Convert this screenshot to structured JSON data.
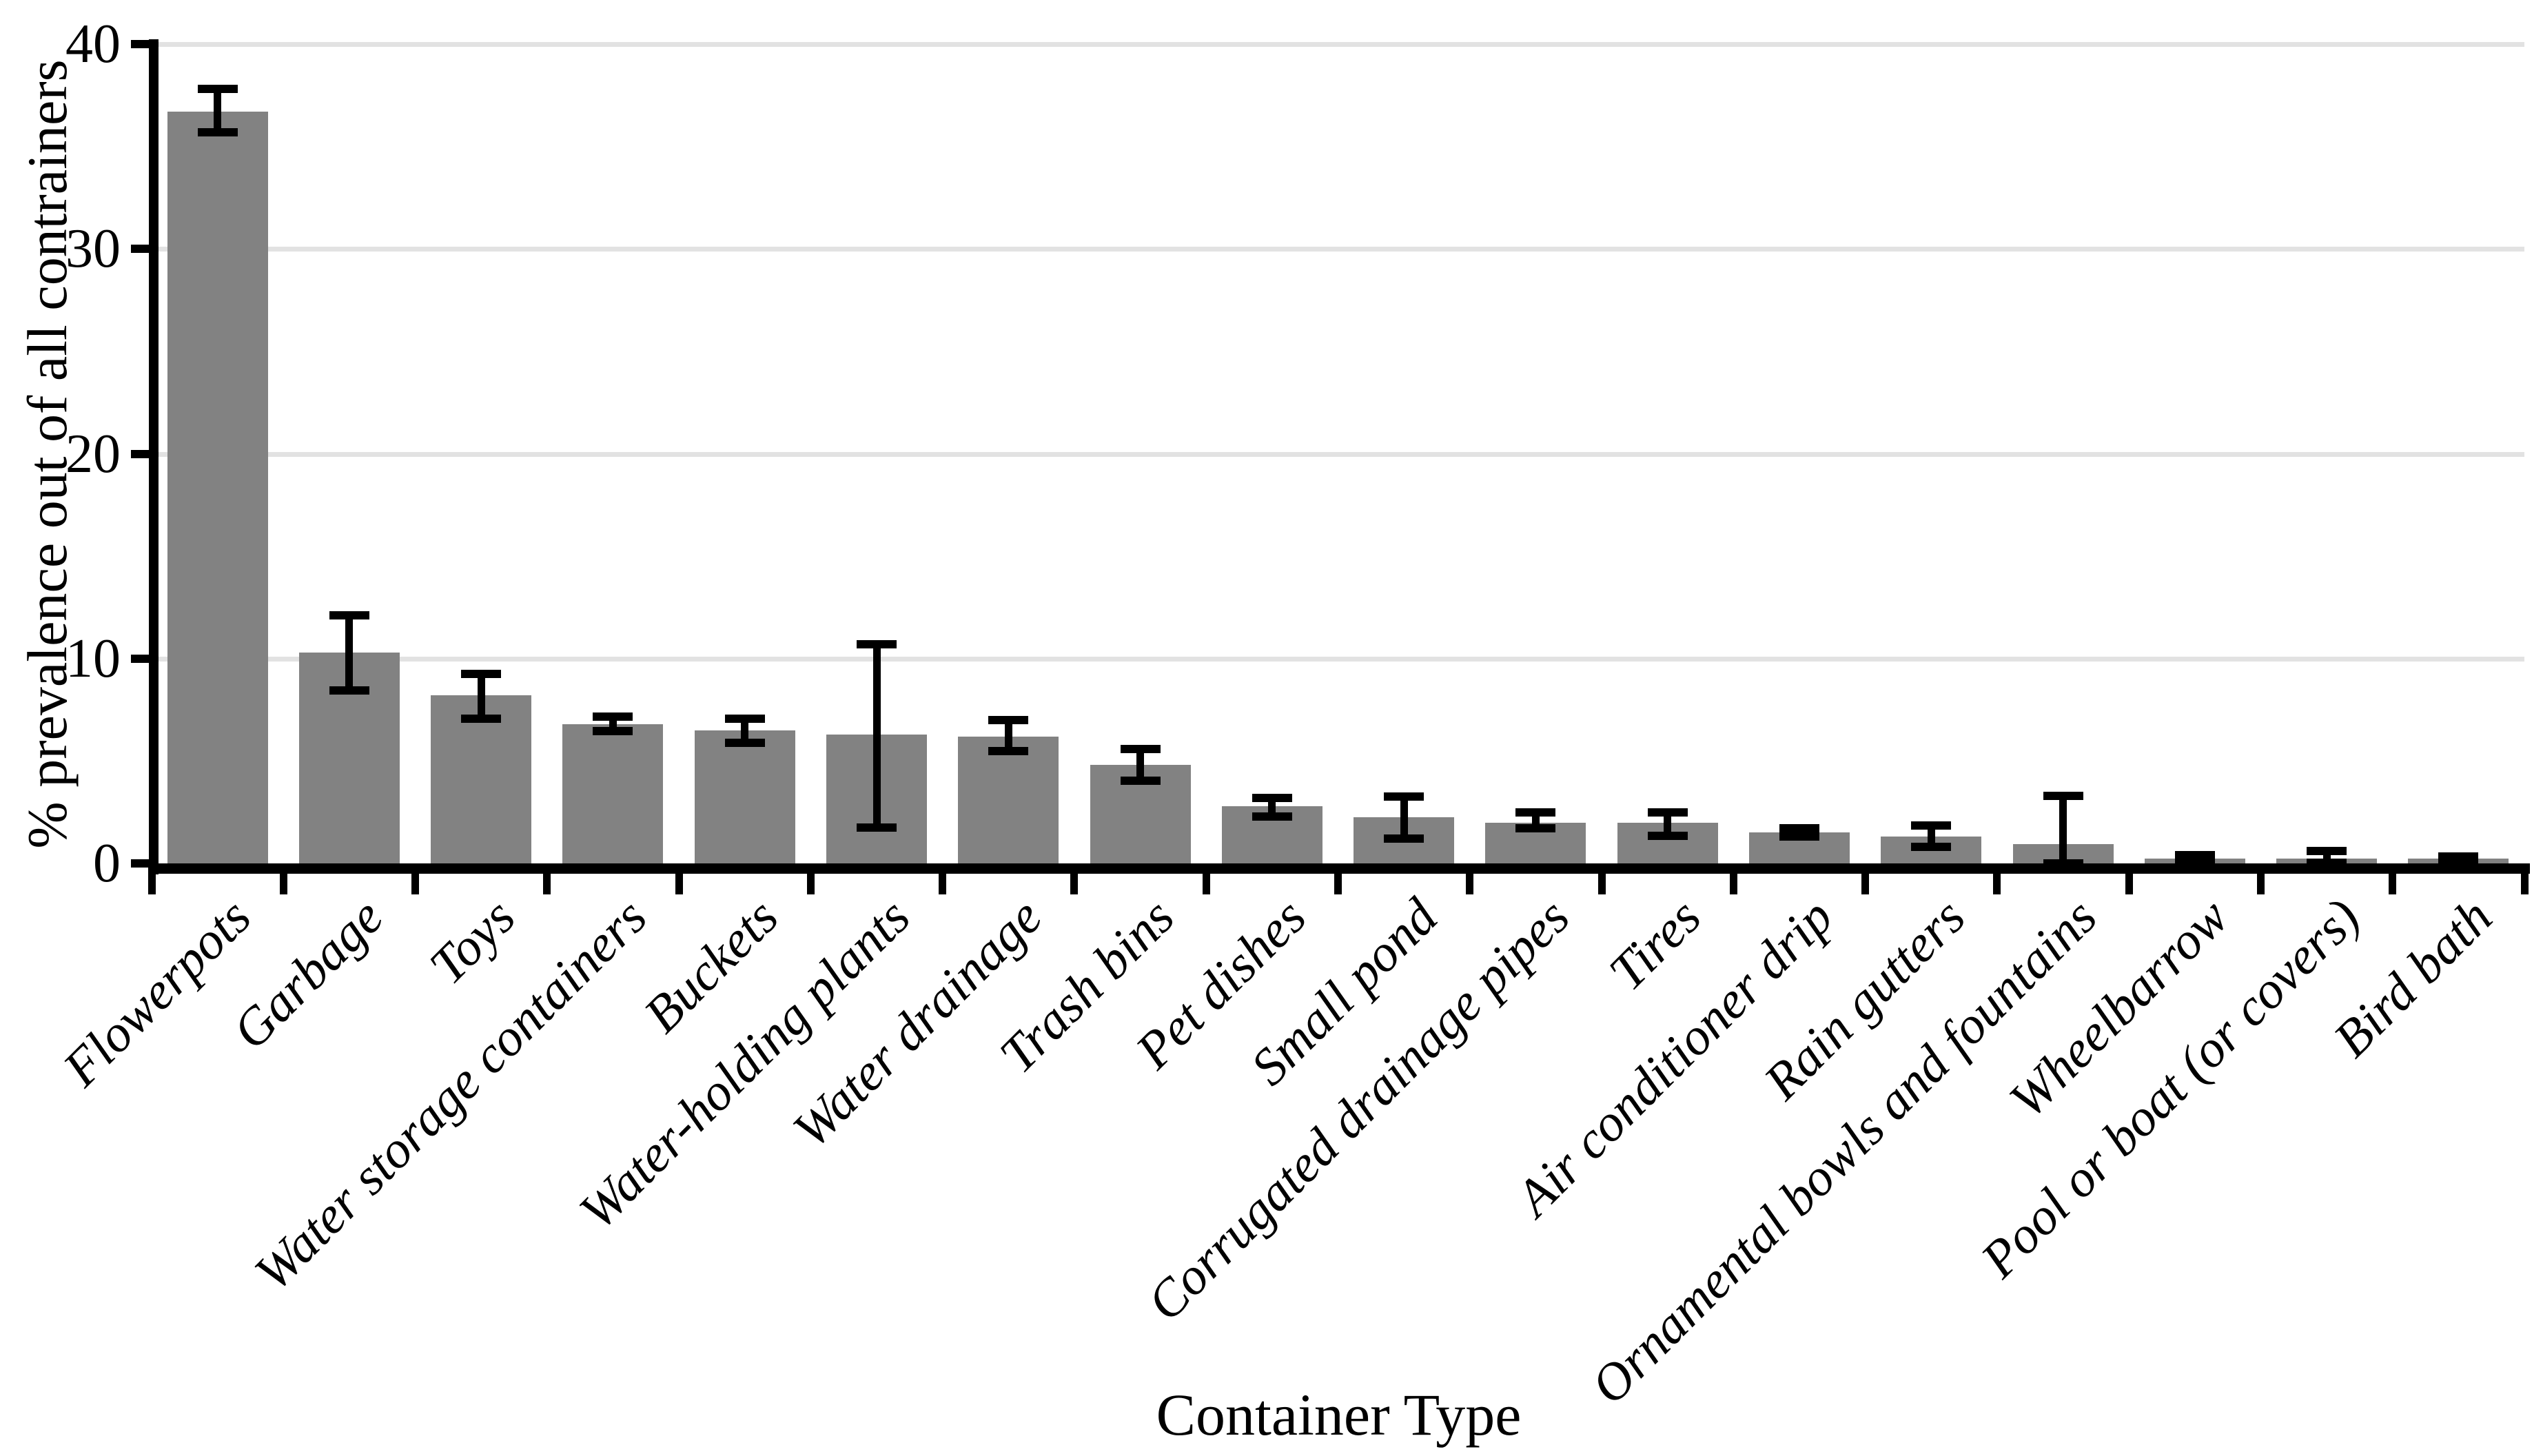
{
  "figure": {
    "background_color": "#ffffff",
    "bar_color": "#828282",
    "gridline_color": "#e2e2e2",
    "axis_color": "#000000",
    "error_bar_color": "#000000"
  },
  "chart_data": {
    "type": "bar",
    "title": "",
    "xlabel": "Container Type",
    "ylabel": "% prevalence out of all contrainers",
    "ylim": [
      0,
      40
    ],
    "y_ticks": [
      0,
      10,
      20,
      30,
      40
    ],
    "grid": "horizontal",
    "legend": "none",
    "categories": [
      "Flowerpots",
      "Garbage",
      "Toys",
      "Water storage containers",
      "Buckets",
      "Water-holding plants",
      "Water drainage",
      "Trash bins",
      "Pet dishes",
      "Small pond",
      "Corrugated drainage pipes",
      "Tires",
      "Air conditioner drip",
      "Rain gutters",
      "Ornamental bowls and fountains",
      "Wheelbarrow",
      "Pool or boat (or covers)",
      "Bird bath"
    ],
    "series": [
      {
        "name": "% prevalence",
        "values": [
          36.7,
          10.3,
          8.2,
          6.8,
          6.5,
          6.3,
          6.2,
          4.8,
          2.8,
          2.25,
          2.0,
          2.0,
          1.5,
          1.3,
          0.95,
          0.25,
          0.25,
          0.25
        ],
        "error_up": [
          1.1,
          1.8,
          1.05,
          0.35,
          0.55,
          4.4,
          0.8,
          0.8,
          0.4,
          1.0,
          0.5,
          0.5,
          0.2,
          0.55,
          2.35,
          0.17,
          0.35,
          0.1
        ],
        "error_down": [
          1.0,
          1.85,
          1.15,
          0.35,
          0.6,
          4.55,
          0.7,
          0.75,
          0.5,
          1.05,
          0.3,
          0.65,
          0.2,
          0.5,
          0.95,
          0.1,
          0.2,
          0.1
        ]
      }
    ]
  }
}
